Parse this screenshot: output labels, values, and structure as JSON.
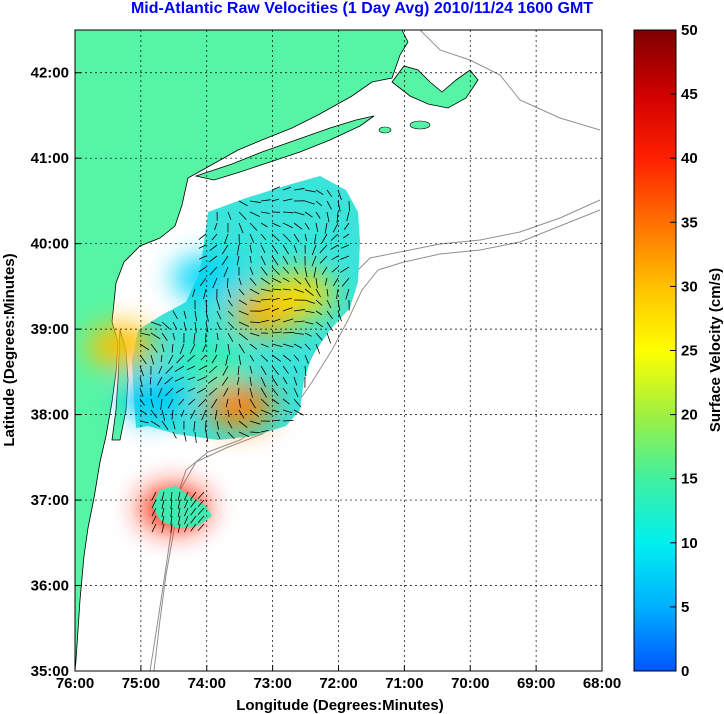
{
  "title": "Mid-Atlantic Raw Velocities (1 Day Avg) 2010/11/24 1600 GMT",
  "map": {
    "xlabel": "Longitude (Degrees:Minutes)",
    "ylabel": "Latitude (Degrees:Minutes)",
    "lon_range": [
      -76,
      -68
    ],
    "lat_range": [
      35,
      42.5
    ],
    "lon_ticks": [
      -76,
      -75,
      -74,
      -73,
      -72,
      -71,
      -70,
      -69,
      -68
    ],
    "lon_tick_labels": [
      "76:00",
      "75:00",
      "74:00",
      "73:00",
      "72:00",
      "71:00",
      "70:00",
      "69:00",
      "68:00"
    ],
    "lat_ticks": [
      35,
      36,
      37,
      38,
      39,
      40,
      41,
      42
    ],
    "lat_tick_labels": [
      "35:00",
      "36:00",
      "37:00",
      "38:00",
      "39:00",
      "40:00",
      "41:00",
      "42:00"
    ],
    "land_color": "#55f5a5",
    "grid": true,
    "current_patches": [
      {
        "lon": -73.1,
        "lat": 39.2,
        "speed": 31
      },
      {
        "lon": -72.6,
        "lat": 39.4,
        "speed": 28
      },
      {
        "lon": -73.5,
        "lat": 38.1,
        "speed": 34
      },
      {
        "lon": -75.3,
        "lat": 38.8,
        "speed": 30
      },
      {
        "lon": -74.5,
        "lat": 36.9,
        "speed": 40
      },
      {
        "lon": -74.0,
        "lat": 39.6,
        "speed": 8
      },
      {
        "lon": -74.8,
        "lat": 38.2,
        "speed": 7
      },
      {
        "lon": -73.9,
        "lat": 38.6,
        "speed": 14
      }
    ]
  },
  "colorbar": {
    "label": "Surface Velocity (cm/s)",
    "min": 0,
    "max": 50,
    "ticks": [
      0,
      5,
      10,
      15,
      20,
      25,
      30,
      35,
      40,
      45,
      50
    ],
    "tick_labels": [
      "0",
      "5",
      "10",
      "15",
      "20",
      "25",
      "30",
      "35",
      "40",
      "45",
      "50"
    ],
    "colors": [
      "#0055ff",
      "#00b0ff",
      "#00f0f0",
      "#40f0a0",
      "#a0f040",
      "#ffff00",
      "#ffc000",
      "#ff7000",
      "#ff2000",
      "#d00000",
      "#800000"
    ]
  }
}
